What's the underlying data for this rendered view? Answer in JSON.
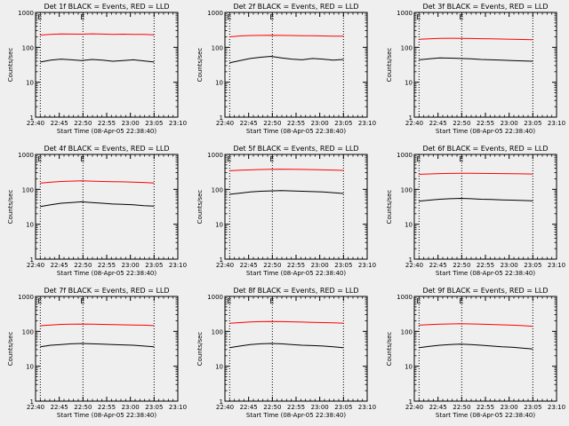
{
  "chart_data": [
    {
      "type": "line",
      "title": "Det 1f BLACK = Events, RED = LLD",
      "xlabel": "Start Time (08-Apr-05 22:38:40)",
      "ylabel": "Counts/sec",
      "yscale": "log",
      "ylim": [
        1,
        1000
      ],
      "xlim": [
        "22:40",
        "23:10"
      ],
      "x_ticks": [
        "22:40",
        "22:45",
        "22:50",
        "22:55",
        "23:00",
        "23:05",
        "23:10"
      ],
      "y_ticks": [
        "1",
        "10",
        "100",
        "1000"
      ],
      "markers": [
        "E",
        "E"
      ],
      "marker_times": [
        "22:41",
        "22:50"
      ],
      "vlines": [
        "22:41",
        "22:50",
        "23:05"
      ],
      "grid": false,
      "series": [
        {
          "color": "#000000",
          "x_range": [
            "22:41",
            "23:05"
          ],
          "values": [
            38,
            43,
            46,
            44,
            42,
            45,
            43,
            40,
            42,
            44,
            41,
            38
          ]
        },
        {
          "color": "#ff0000",
          "x_range": [
            "22:41",
            "23:05"
          ],
          "values": [
            225,
            235,
            242,
            240,
            238,
            244,
            240,
            236,
            238,
            236,
            234,
            228
          ]
        }
      ]
    },
    {
      "type": "line",
      "title": "Det 2f BLACK = Events, RED = LLD",
      "xlabel": "Start Time (08-Apr-05 22:38:40)",
      "ylabel": "Counts/sec",
      "yscale": "log",
      "ylim": [
        1,
        1000
      ],
      "xlim": [
        "22:40",
        "23:10"
      ],
      "x_ticks": [
        "22:40",
        "22:45",
        "22:50",
        "22:55",
        "23:00",
        "23:05",
        "23:10"
      ],
      "y_ticks": [
        "1",
        "10",
        "100",
        "1000"
      ],
      "markers": [
        "E",
        "E"
      ],
      "marker_times": [
        "22:41",
        "22:50"
      ],
      "vlines": [
        "22:41",
        "22:50",
        "23:05"
      ],
      "grid": false,
      "series": [
        {
          "color": "#000000",
          "x_range": [
            "22:41",
            "23:05"
          ],
          "values": [
            36,
            42,
            48,
            52,
            55,
            50,
            46,
            44,
            48,
            46,
            43,
            45
          ]
        },
        {
          "color": "#ff0000",
          "x_range": [
            "22:41",
            "23:05"
          ],
          "values": [
            200,
            212,
            218,
            220,
            222,
            220,
            218,
            216,
            214,
            212,
            210,
            208
          ]
        }
      ]
    },
    {
      "type": "line",
      "title": "Det 3f BLACK = Events, RED = LLD",
      "xlabel": "Start Time (08-Apr-05 22:38:40)",
      "ylabel": "Counts/sec",
      "yscale": "log",
      "ylim": [
        1,
        1000
      ],
      "xlim": [
        "22:40",
        "23:10"
      ],
      "x_ticks": [
        "22:40",
        "22:45",
        "22:50",
        "22:55",
        "23:00",
        "23:05",
        "23:10"
      ],
      "y_ticks": [
        "1",
        "10",
        "100",
        "1000"
      ],
      "markers": [
        "E",
        "E"
      ],
      "marker_times": [
        "22:41",
        "22:50"
      ],
      "vlines": [
        "22:41",
        "22:50",
        "23:05"
      ],
      "grid": false,
      "series": [
        {
          "color": "#000000",
          "x_range": [
            "22:41",
            "23:05"
          ],
          "values": [
            44,
            47,
            50,
            49,
            48,
            47,
            45,
            44,
            43,
            42,
            41,
            40
          ]
        },
        {
          "color": "#ff0000",
          "x_range": [
            "22:41",
            "23:05"
          ],
          "values": [
            170,
            176,
            180,
            182,
            181,
            179,
            177,
            175,
            173,
            171,
            168,
            165
          ]
        }
      ]
    },
    {
      "type": "line",
      "title": "Det 4f BLACK = Events, RED = LLD",
      "xlabel": "Start Time (08-Apr-05 22:38:40)",
      "ylabel": "Counts/sec",
      "yscale": "log",
      "ylim": [
        1,
        1000
      ],
      "xlim": [
        "22:40",
        "23:10"
      ],
      "x_ticks": [
        "22:40",
        "22:45",
        "22:50",
        "22:55",
        "23:00",
        "23:05",
        "23:10"
      ],
      "y_ticks": [
        "1",
        "10",
        "100",
        "1000"
      ],
      "markers": [
        "E",
        "E"
      ],
      "marker_times": [
        "22:41",
        "22:50"
      ],
      "vlines": [
        "22:41",
        "22:50",
        "23:05"
      ],
      "grid": false,
      "series": [
        {
          "color": "#000000",
          "x_range": [
            "22:41",
            "23:05"
          ],
          "values": [
            32,
            36,
            40,
            42,
            44,
            42,
            40,
            38,
            37,
            36,
            34,
            33
          ]
        },
        {
          "color": "#ff0000",
          "x_range": [
            "22:41",
            "23:05"
          ],
          "values": [
            150,
            160,
            168,
            172,
            175,
            172,
            168,
            166,
            164,
            160,
            157,
            152
          ]
        }
      ]
    },
    {
      "type": "line",
      "title": "Det 5f BLACK = Events, RED = LLD",
      "xlabel": "Start Time (08-Apr-05 22:38:40)",
      "ylabel": "Counts/sec",
      "yscale": "log",
      "ylim": [
        1,
        1000
      ],
      "xlim": [
        "22:40",
        "23:10"
      ],
      "x_ticks": [
        "22:40",
        "22:45",
        "22:50",
        "22:55",
        "23:00",
        "23:05",
        "23:10"
      ],
      "y_ticks": [
        "1",
        "10",
        "100",
        "1000"
      ],
      "markers": [
        "E",
        "E"
      ],
      "marker_times": [
        "22:41",
        "22:50"
      ],
      "vlines": [
        "22:41",
        "22:50",
        "23:05"
      ],
      "grid": false,
      "series": [
        {
          "color": "#000000",
          "x_range": [
            "22:41",
            "23:05"
          ],
          "values": [
            72,
            78,
            84,
            88,
            90,
            92,
            90,
            88,
            86,
            84,
            80,
            76
          ]
        },
        {
          "color": "#ff0000",
          "x_range": [
            "22:41",
            "23:05"
          ],
          "values": [
            340,
            352,
            362,
            370,
            375,
            378,
            376,
            372,
            368,
            362,
            356,
            348
          ]
        }
      ]
    },
    {
      "type": "line",
      "title": "Det 6f BLACK = Events, RED = LLD",
      "xlabel": "Start Time (08-Apr-05 22:38:40)",
      "ylabel": "Counts/sec",
      "yscale": "log",
      "ylim": [
        1,
        1000
      ],
      "xlim": [
        "22:40",
        "23:10"
      ],
      "x_ticks": [
        "22:40",
        "22:45",
        "22:50",
        "22:55",
        "23:00",
        "23:05",
        "23:10"
      ],
      "y_ticks": [
        "1",
        "10",
        "100",
        "1000"
      ],
      "markers": [
        "E",
        "E"
      ],
      "marker_times": [
        "22:41",
        "22:50"
      ],
      "vlines": [
        "22:41",
        "22:50",
        "23:05"
      ],
      "grid": false,
      "series": [
        {
          "color": "#000000",
          "x_range": [
            "22:41",
            "23:05"
          ],
          "values": [
            46,
            49,
            52,
            54,
            55,
            54,
            52,
            51,
            50,
            49,
            48,
            47
          ]
        },
        {
          "color": "#ff0000",
          "x_range": [
            "22:41",
            "23:05"
          ],
          "values": [
            270,
            276,
            282,
            285,
            287,
            288,
            286,
            284,
            282,
            280,
            278,
            275
          ]
        }
      ]
    },
    {
      "type": "line",
      "title": "Det 7f BLACK = Events, RED = LLD",
      "xlabel": "Start Time (08-Apr-05 22:38:40)",
      "ylabel": "Counts/sec",
      "yscale": "log",
      "ylim": [
        1,
        1000
      ],
      "xlim": [
        "22:40",
        "23:10"
      ],
      "x_ticks": [
        "22:40",
        "22:45",
        "22:50",
        "22:55",
        "23:00",
        "23:05",
        "23:10"
      ],
      "y_ticks": [
        "1",
        "10",
        "100",
        "1000"
      ],
      "markers": [
        "E",
        "E"
      ],
      "marker_times": [
        "22:41",
        "22:50"
      ],
      "vlines": [
        "22:41",
        "22:50",
        "23:05"
      ],
      "grid": false,
      "series": [
        {
          "color": "#000000",
          "x_range": [
            "22:41",
            "23:05"
          ],
          "values": [
            36,
            40,
            42,
            44,
            45,
            44,
            43,
            42,
            41,
            40,
            38,
            36
          ]
        },
        {
          "color": "#ff0000",
          "x_range": [
            "22:41",
            "23:05"
          ],
          "values": [
            145,
            152,
            158,
            160,
            162,
            160,
            158,
            156,
            154,
            152,
            150,
            146
          ]
        }
      ]
    },
    {
      "type": "line",
      "title": "Det 8f BLACK = Events, RED = LLD",
      "xlabel": "Start Time (08-Apr-05 22:38:40)",
      "ylabel": "Counts/sec",
      "yscale": "log",
      "ylim": [
        1,
        1000
      ],
      "xlim": [
        "22:40",
        "23:10"
      ],
      "x_ticks": [
        "22:40",
        "22:45",
        "22:50",
        "22:55",
        "23:00",
        "23:05",
        "23:10"
      ],
      "y_ticks": [
        "1",
        "10",
        "100",
        "1000"
      ],
      "markers": [
        "E",
        "E"
      ],
      "marker_times": [
        "22:41",
        "22:50"
      ],
      "vlines": [
        "22:41",
        "22:50",
        "23:05"
      ],
      "grid": false,
      "series": [
        {
          "color": "#000000",
          "x_range": [
            "22:41",
            "23:05"
          ],
          "values": [
            34,
            38,
            42,
            44,
            45,
            44,
            42,
            40,
            39,
            38,
            36,
            34
          ]
        },
        {
          "color": "#ff0000",
          "x_range": [
            "22:41",
            "23:05"
          ],
          "values": [
            170,
            178,
            185,
            190,
            192,
            190,
            187,
            184,
            180,
            178,
            175,
            172
          ]
        }
      ]
    },
    {
      "type": "line",
      "title": "Det 9f BLACK = Events, RED = LLD",
      "xlabel": "Start Time (08-Apr-05 22:38:40)",
      "ylabel": "Counts/sec",
      "yscale": "log",
      "ylim": [
        1,
        1000
      ],
      "xlim": [
        "22:40",
        "23:10"
      ],
      "x_ticks": [
        "22:40",
        "22:45",
        "22:50",
        "22:55",
        "23:00",
        "23:05",
        "23:10"
      ],
      "y_ticks": [
        "1",
        "10",
        "100",
        "1000"
      ],
      "markers": [
        "E",
        "E"
      ],
      "marker_times": [
        "22:41",
        "22:50"
      ],
      "vlines": [
        "22:41",
        "22:50",
        "23:05"
      ],
      "grid": false,
      "series": [
        {
          "color": "#000000",
          "x_range": [
            "22:41",
            "23:05"
          ],
          "values": [
            34,
            37,
            40,
            42,
            43,
            42,
            40,
            38,
            36,
            35,
            33,
            31
          ]
        },
        {
          "color": "#ff0000",
          "x_range": [
            "22:41",
            "23:05"
          ],
          "values": [
            150,
            156,
            160,
            163,
            165,
            163,
            160,
            157,
            154,
            150,
            146,
            140
          ]
        }
      ]
    }
  ]
}
